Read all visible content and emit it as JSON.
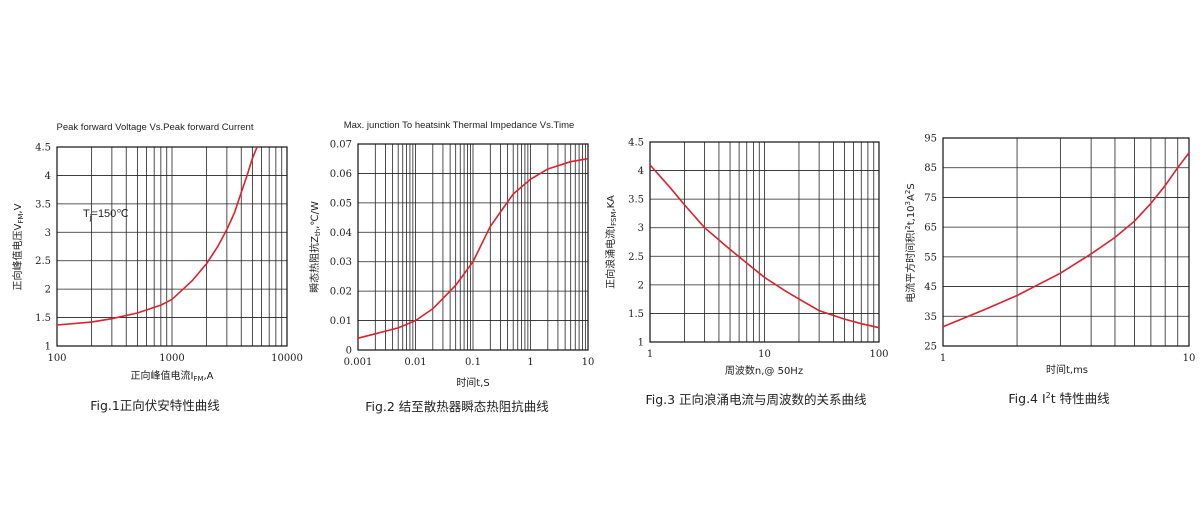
{
  "colors": {
    "curve": "#e0202a",
    "grid": "#222222",
    "frame": "#111111"
  },
  "chart_data": [
    {
      "type": "line",
      "title": "Peak forward Voltage Vs.Peak forward Current",
      "xlabel_main": "正向峰值电流I",
      "xlabel_sub": "FM",
      "xlabel_tail": ",A",
      "ylabel_main": "正向峰值电压V",
      "ylabel_sub": "FM",
      "ylabel_tail": ",V",
      "xscale": "log",
      "xlim": [
        100,
        10000
      ],
      "ylim": [
        1,
        4.5
      ],
      "xticks": [
        {
          "v": 100,
          "label": "100"
        },
        {
          "v": 1000,
          "label": "1000"
        },
        {
          "v": 10000,
          "label": "10000"
        }
      ],
      "yticks": [
        {
          "v": 1,
          "label": "1"
        },
        {
          "v": 1.5,
          "label": "1.5"
        },
        {
          "v": 2,
          "label": "2"
        },
        {
          "v": 2.5,
          "label": "2.5"
        },
        {
          "v": 3,
          "label": "3"
        },
        {
          "v": 3.5,
          "label": "3.5"
        },
        {
          "v": 4,
          "label": "4"
        },
        {
          "v": 4.5,
          "label": "4.5"
        }
      ],
      "annotation_main": "T",
      "annotation_sub": "j",
      "annotation_tail": "=150℃",
      "grid": true,
      "series": [
        {
          "x": [
            100,
            200,
            300,
            500,
            800,
            1000,
            1500,
            2000,
            2500,
            3000,
            3500,
            4000,
            4500,
            5000,
            5500
          ],
          "y": [
            1.37,
            1.42,
            1.48,
            1.58,
            1.72,
            1.82,
            2.15,
            2.45,
            2.75,
            3.05,
            3.35,
            3.7,
            4.0,
            4.3,
            4.55
          ]
        }
      ],
      "caption": "Fig.1正向伏安特性曲线"
    },
    {
      "type": "line",
      "title": "Max. junction To heatsink Thermal Impedance Vs.Time",
      "xlabel": "时间t,S",
      "ylabel_main": "瞬态热阻抗Z",
      "ylabel_sub": "th",
      "ylabel_tail": ",℃/W",
      "xscale": "log",
      "xlim": [
        0.001,
        10
      ],
      "ylim": [
        0,
        0.07
      ],
      "xticks": [
        {
          "v": 0.001,
          "label": "0.001"
        },
        {
          "v": 0.01,
          "label": "0.01"
        },
        {
          "v": 0.1,
          "label": "0.1"
        },
        {
          "v": 1,
          "label": "1"
        },
        {
          "v": 10,
          "label": "10"
        }
      ],
      "yticks": [
        {
          "v": 0,
          "label": "0"
        },
        {
          "v": 0.01,
          "label": "0.01"
        },
        {
          "v": 0.02,
          "label": "0.02"
        },
        {
          "v": 0.03,
          "label": "0.03"
        },
        {
          "v": 0.04,
          "label": "0.04"
        },
        {
          "v": 0.05,
          "label": "0.05"
        },
        {
          "v": 0.06,
          "label": "0.06"
        },
        {
          "v": 0.07,
          "label": "0.07"
        }
      ],
      "grid": true,
      "series": [
        {
          "x": [
            0.001,
            0.002,
            0.005,
            0.01,
            0.02,
            0.05,
            0.1,
            0.2,
            0.5,
            1,
            2,
            5,
            10
          ],
          "y": [
            0.004,
            0.0055,
            0.0075,
            0.01,
            0.014,
            0.022,
            0.03,
            0.042,
            0.053,
            0.058,
            0.0615,
            0.064,
            0.065
          ]
        }
      ],
      "caption": "Fig.2 结至散热器瞬态热阻抗曲线"
    },
    {
      "type": "line",
      "title": "",
      "xlabel": "周波数n,@ 50Hz",
      "ylabel_main": "正向浪涌电流I",
      "ylabel_sub": "FSM",
      "ylabel_tail": ",KA",
      "xscale": "log",
      "xlim": [
        1,
        100
      ],
      "ylim": [
        1,
        4.5
      ],
      "xticks": [
        {
          "v": 1,
          "label": "1"
        },
        {
          "v": 10,
          "label": "10"
        },
        {
          "v": 100,
          "label": "100"
        }
      ],
      "yticks": [
        {
          "v": 1,
          "label": "1"
        },
        {
          "v": 1.5,
          "label": "1.5"
        },
        {
          "v": 2,
          "label": "2"
        },
        {
          "v": 2.5,
          "label": "2.5"
        },
        {
          "v": 3,
          "label": "3"
        },
        {
          "v": 3.5,
          "label": "3.5"
        },
        {
          "v": 4,
          "label": "4"
        },
        {
          "v": 4.5,
          "label": "4.5"
        }
      ],
      "grid": true,
      "series": [
        {
          "x": [
            1,
            1.5,
            2,
            3,
            5,
            7,
            10,
            15,
            20,
            30,
            50,
            70,
            100
          ],
          "y": [
            4.1,
            3.7,
            3.4,
            3.0,
            2.62,
            2.38,
            2.13,
            1.9,
            1.75,
            1.55,
            1.4,
            1.32,
            1.25
          ]
        }
      ],
      "caption": "Fig.3 正向浪涌电流与周波数的关系曲线"
    },
    {
      "type": "line",
      "title": "",
      "xlabel": "时间t,ms",
      "ylabel_main": "电流平方时间积I",
      "ylabel_sup1": "2",
      "ylabel_mid": "t,10",
      "ylabel_sup2": "3",
      "ylabel_tail": "A",
      "ylabel_sup3": "2",
      "ylabel_end": "S",
      "xscale": "log",
      "xlim": [
        1,
        10
      ],
      "ylim": [
        25,
        95
      ],
      "xticks": [
        {
          "v": 1,
          "label": "1"
        },
        {
          "v": 10,
          "label": "10"
        }
      ],
      "yticks": [
        {
          "v": 25,
          "label": "25"
        },
        {
          "v": 35,
          "label": "35"
        },
        {
          "v": 45,
          "label": "45"
        },
        {
          "v": 55,
          "label": "55"
        },
        {
          "v": 65,
          "label": "65"
        },
        {
          "v": 75,
          "label": "75"
        },
        {
          "v": 85,
          "label": "85"
        },
        {
          "v": 95,
          "label": "95"
        }
      ],
      "grid": true,
      "series": [
        {
          "x": [
            1,
            1.5,
            2,
            3,
            4,
            5,
            6,
            7,
            8,
            9,
            10
          ],
          "y": [
            31.5,
            37.5,
            42,
            49.5,
            56,
            61.5,
            67,
            73,
            79,
            85,
            90
          ]
        }
      ],
      "caption_main": "Fig.4 I",
      "caption_sup": "2",
      "caption_tail": "t 特性曲线"
    }
  ]
}
